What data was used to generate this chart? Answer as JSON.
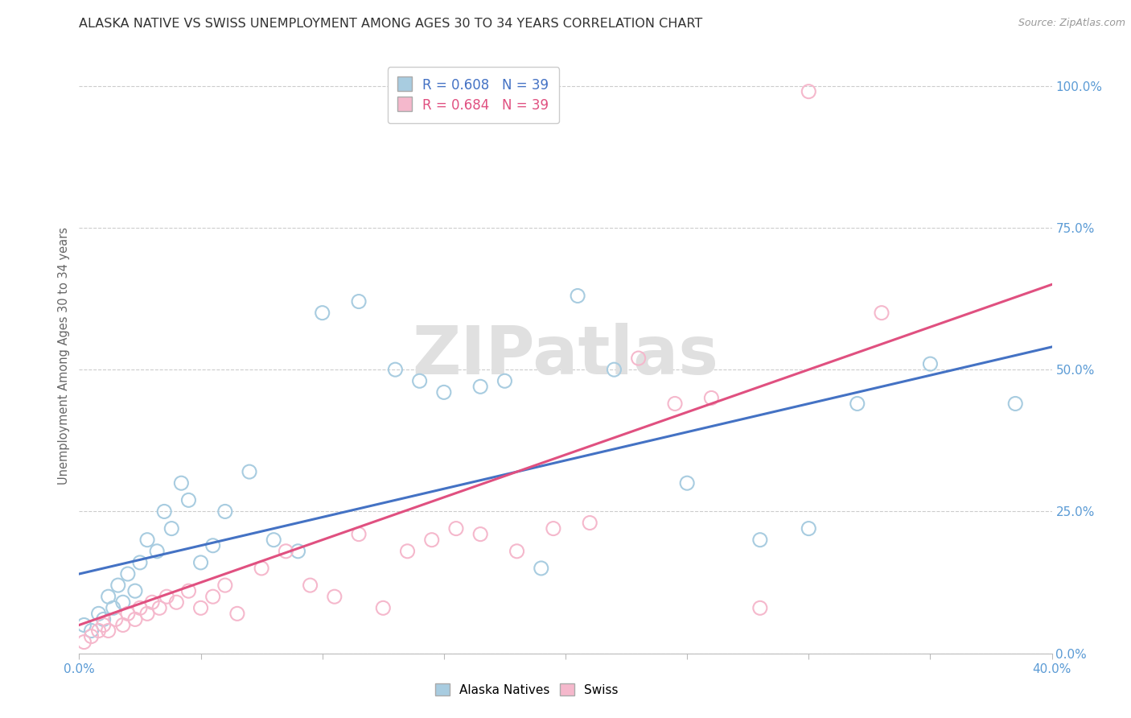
{
  "title": "ALASKA NATIVE VS SWISS UNEMPLOYMENT AMONG AGES 30 TO 34 YEARS CORRELATION CHART",
  "source": "Source: ZipAtlas.com",
  "ylabel_label": "Unemployment Among Ages 30 to 34 years",
  "alaska_R": "0.608",
  "alaska_N": "39",
  "swiss_R": "0.684",
  "swiss_N": "39",
  "alaska_color": "#a8cce0",
  "swiss_color": "#f5b8cc",
  "alaska_line_color": "#4472c4",
  "swiss_line_color": "#e05080",
  "watermark": "ZIPatlas",
  "xlim": [
    0,
    40
  ],
  "ylim": [
    0,
    105
  ],
  "ylabel_vals": [
    0,
    25,
    50,
    75,
    100
  ],
  "ylabel_labels": [
    "0.0%",
    "25.0%",
    "50.0%",
    "75.0%",
    "100.0%"
  ],
  "xtick_show": [
    0,
    40
  ],
  "xtick_labels": [
    "0.0%",
    "40.0%"
  ],
  "alaska_x": [
    0.2,
    0.5,
    0.8,
    1.0,
    1.2,
    1.4,
    1.6,
    1.8,
    2.0,
    2.3,
    2.5,
    2.8,
    3.2,
    3.5,
    3.8,
    4.2,
    4.5,
    5.0,
    5.5,
    6.0,
    7.0,
    8.0,
    9.0,
    10.0,
    11.5,
    13.0,
    14.0,
    15.0,
    16.5,
    17.5,
    19.0,
    20.5,
    22.0,
    25.0,
    28.0,
    30.0,
    32.0,
    35.0,
    38.5
  ],
  "alaska_y": [
    5,
    4,
    7,
    6,
    10,
    8,
    12,
    9,
    14,
    11,
    16,
    20,
    18,
    25,
    22,
    30,
    27,
    16,
    19,
    25,
    32,
    20,
    18,
    60,
    62,
    50,
    48,
    46,
    47,
    48,
    15,
    63,
    50,
    30,
    20,
    22,
    44,
    51,
    44
  ],
  "swiss_x": [
    0.2,
    0.5,
    0.8,
    1.0,
    1.2,
    1.5,
    1.8,
    2.0,
    2.3,
    2.5,
    2.8,
    3.0,
    3.3,
    3.6,
    4.0,
    4.5,
    5.0,
    5.5,
    6.0,
    6.5,
    7.5,
    8.5,
    9.5,
    10.5,
    11.5,
    12.5,
    13.5,
    14.5,
    15.5,
    16.5,
    18.0,
    19.5,
    21.0,
    23.0,
    24.5,
    26.0,
    28.0,
    30.0,
    33.0
  ],
  "swiss_y": [
    2,
    3,
    4,
    5,
    4,
    6,
    5,
    7,
    6,
    8,
    7,
    9,
    8,
    10,
    9,
    11,
    8,
    10,
    12,
    7,
    15,
    18,
    12,
    10,
    21,
    8,
    18,
    20,
    22,
    21,
    18,
    22,
    23,
    52,
    44,
    45,
    8,
    99,
    60
  ],
  "alaska_line_y0": 14.0,
  "alaska_line_y40": 54.0,
  "swiss_line_y0": 5.0,
  "swiss_line_y40": 65.0
}
